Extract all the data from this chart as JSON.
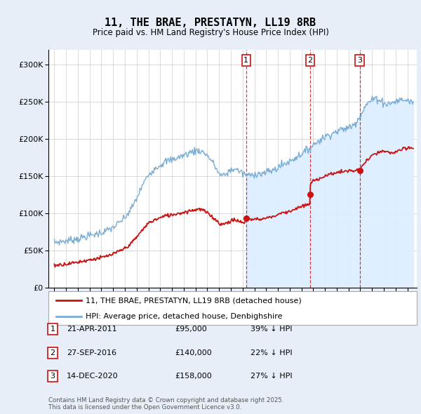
{
  "title": "11, THE BRAE, PRESTATYN, LL19 8RB",
  "subtitle": "Price paid vs. HM Land Registry's House Price Index (HPI)",
  "hpi_color": "#7aadd4",
  "price_color": "#cc1111",
  "background_color": "#e8eef8",
  "plot_bg_color": "#ffffff",
  "shade_color": "#ddeeff",
  "transactions": [
    {
      "num": 1,
      "date_str": "21-APR-2011",
      "date_x": 2011.3,
      "price": 95000,
      "price_str": "£95,000",
      "pct": "39% ↓ HPI"
    },
    {
      "num": 2,
      "date_str": "27-SEP-2016",
      "date_x": 2016.73,
      "price": 140000,
      "price_str": "£140,000",
      "pct": "22% ↓ HPI"
    },
    {
      "num": 3,
      "date_str": "14-DEC-2020",
      "date_x": 2020.95,
      "price": 158000,
      "price_str": "£158,000",
      "pct": "27% ↓ HPI"
    }
  ],
  "legend_label_price": "11, THE BRAE, PRESTATYN, LL19 8RB (detached house)",
  "legend_label_hpi": "HPI: Average price, detached house, Denbighshire",
  "footer": "Contains HM Land Registry data © Crown copyright and database right 2025.\nThis data is licensed under the Open Government Licence v3.0.",
  "ylim": [
    0,
    320000
  ],
  "yticks": [
    0,
    50000,
    100000,
    150000,
    200000,
    250000,
    300000
  ],
  "xlim_start": 1994.5,
  "xlim_end": 2025.8
}
